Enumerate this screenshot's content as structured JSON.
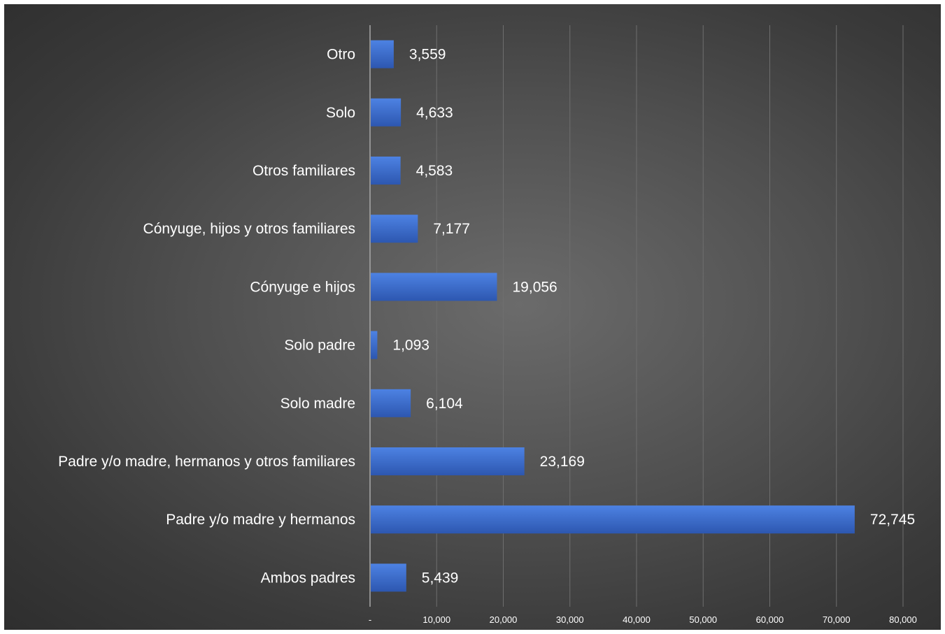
{
  "chart_data": {
    "type": "bar",
    "orientation": "horizontal",
    "title": "",
    "xlabel": "",
    "ylabel": "",
    "categories": [
      "Otro",
      "Solo",
      "Otros familiares",
      "Cónyuge, hijos y otros familiares",
      "Cónyuge e hijos",
      "Solo padre",
      "Solo  madre",
      "Padre y/o madre, hermanos y otros familiares",
      "Padre y/o madre y hermanos",
      "Ambos padres"
    ],
    "values": [
      3559,
      4633,
      4583,
      7177,
      19056,
      1093,
      6104,
      23169,
      72745,
      5439
    ],
    "value_labels": [
      "3,559",
      "4,633",
      "4,583",
      "7,177",
      "19,056",
      "1,093",
      "6,104",
      "23,169",
      "72,745",
      "5,439"
    ],
    "xlim": [
      0,
      80000
    ],
    "x_ticks": [
      0,
      10000,
      20000,
      30000,
      40000,
      50000,
      60000,
      70000,
      80000
    ],
    "x_tick_labels": [
      "-",
      "10,000",
      "20,000",
      "30,000",
      "40,000",
      "50,000",
      "60,000",
      "70,000",
      "80,000"
    ],
    "grid": "vertical",
    "legend": "none",
    "bar_color": "#3f6fcf",
    "bar_color_dark": "#2d57b0",
    "background_color": "#3f3f3f",
    "gridline_color": "#6e6e6e",
    "axis_color": "#a8a8a8",
    "text_color": "#ffffff"
  }
}
